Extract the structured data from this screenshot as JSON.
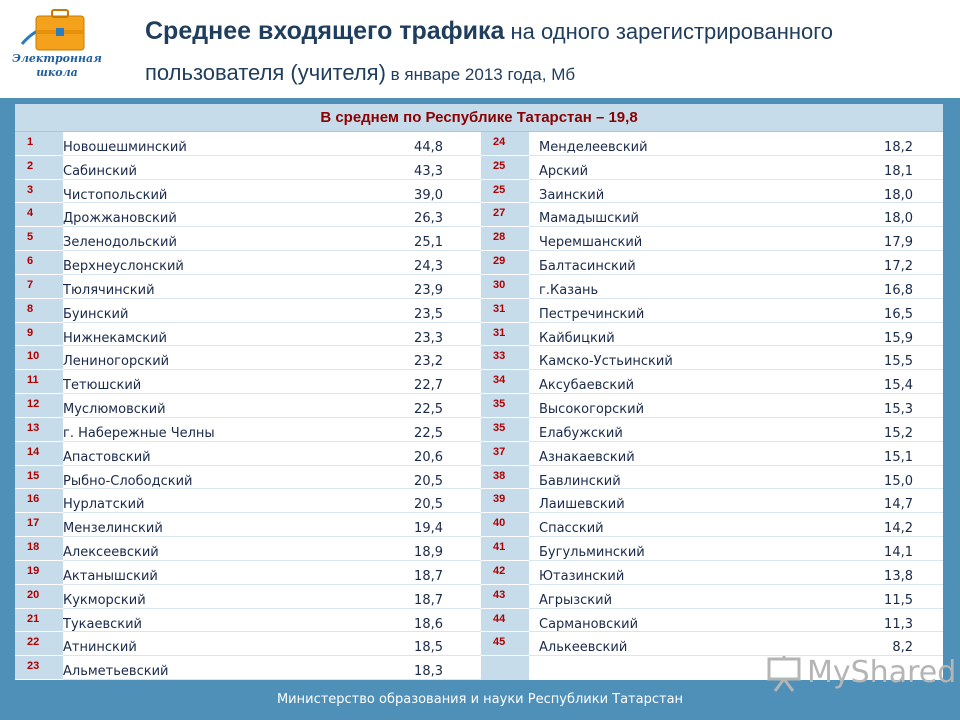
{
  "logo": {
    "caption_line1": "Электронная",
    "caption_line2": "школа",
    "color_primary": "#f4a21c",
    "color_secondary": "#2b7bbf"
  },
  "title": {
    "part_bold": "Среднее входящего трафика",
    "part_normal": " на одного зарегистрированного пользователя (учителя)",
    "part_small": " в январе 2013 года, Мб"
  },
  "table": {
    "header": "В среднем по Республике Татарстан – 19,8",
    "left": [
      {
        "num": "1",
        "name": "Новошешминский",
        "value": "44,8"
      },
      {
        "num": "2",
        "name": "Сабинский",
        "value": "43,3"
      },
      {
        "num": "3",
        "name": "Чистопольский",
        "value": "39,0"
      },
      {
        "num": "4",
        "name": "Дрожжановский",
        "value": "26,3"
      },
      {
        "num": "5",
        "name": "Зеленодольский",
        "value": "25,1"
      },
      {
        "num": "6",
        "name": "Верхнеуслонский",
        "value": "24,3"
      },
      {
        "num": "7",
        "name": "Тюлячинский",
        "value": "23,9"
      },
      {
        "num": "8",
        "name": "Буинский",
        "value": "23,5"
      },
      {
        "num": "9",
        "name": "Нижнекамский",
        "value": "23,3"
      },
      {
        "num": "10",
        "name": "Лениногорский",
        "value": "23,2"
      },
      {
        "num": "11",
        "name": "Тетюшский",
        "value": "22,7"
      },
      {
        "num": "12",
        "name": "Муслюмовский",
        "value": "22,5"
      },
      {
        "num": "13",
        "name": "г. Набережные Челны",
        "value": "22,5"
      },
      {
        "num": "14",
        "name": "Апастовский",
        "value": "20,6"
      },
      {
        "num": "15",
        "name": "Рыбно-Слободский",
        "value": "20,5"
      },
      {
        "num": "16",
        "name": "Нурлатский",
        "value": "20,5"
      },
      {
        "num": "17",
        "name": "Мензелинский",
        "value": "19,4"
      },
      {
        "num": "18",
        "name": "Алексеевский",
        "value": "18,9"
      },
      {
        "num": "19",
        "name": "Актанышский",
        "value": "18,7"
      },
      {
        "num": "20",
        "name": "Кукморский",
        "value": "18,7"
      },
      {
        "num": "21",
        "name": "Тукаевский",
        "value": "18,6"
      },
      {
        "num": "22",
        "name": "Атнинский",
        "value": "18,5"
      },
      {
        "num": "23",
        "name": "Альметьевский",
        "value": "18,3"
      }
    ],
    "right": [
      {
        "num": "24",
        "name": "Менделеевский",
        "value": "18,2"
      },
      {
        "num": "25",
        "name": "Арский",
        "value": "18,1"
      },
      {
        "num": "25",
        "name": "Заинский",
        "value": "18,0"
      },
      {
        "num": "27",
        "name": "Мамадышский",
        "value": "18,0"
      },
      {
        "num": "28",
        "name": "Черемшанский",
        "value": "17,9"
      },
      {
        "num": "29",
        "name": "Балтасинский",
        "value": "17,2"
      },
      {
        "num": "30",
        "name": "г.Казань",
        "value": "16,8"
      },
      {
        "num": "31",
        "name": "Пестречинский",
        "value": "16,5"
      },
      {
        "num": "31",
        "name": "Кайбицкий",
        "value": "15,9"
      },
      {
        "num": "33",
        "name": "Камско-Устьинский",
        "value": "15,5"
      },
      {
        "num": "34",
        "name": "Аксубаевский",
        "value": "15,4"
      },
      {
        "num": "35",
        "name": "Высокогорский",
        "value": "15,3"
      },
      {
        "num": "35",
        "name": "Елабужский",
        "value": "15,2"
      },
      {
        "num": "37",
        "name": "Азнакаевский",
        "value": "15,1"
      },
      {
        "num": "38",
        "name": "Бавлинский",
        "value": "15,0"
      },
      {
        "num": "39",
        "name": "Лаишевский",
        "value": "14,7"
      },
      {
        "num": "40",
        "name": "Спасский",
        "value": "14,2"
      },
      {
        "num": "41",
        "name": "Бугульминский",
        "value": "14,1"
      },
      {
        "num": "42",
        "name": "Ютазинский",
        "value": "13,8"
      },
      {
        "num": "43",
        "name": "Агрызский",
        "value": "11,5"
      },
      {
        "num": "44",
        "name": "Сармановский",
        "value": "11,3"
      },
      {
        "num": "45",
        "name": "Алькеевский",
        "value": "8,2"
      }
    ]
  },
  "footer": {
    "text": "Министерство образования и науки Республики Татарстан"
  },
  "watermark": {
    "text": "MyShared",
    "icon": "presentation-board-icon"
  },
  "colors": {
    "accent_blue": "#4f90b8",
    "header_band": "#c6dceb",
    "title_color": "#1f3d5c",
    "rank_red": "#b00000",
    "header_text_red": "#8b0000"
  }
}
